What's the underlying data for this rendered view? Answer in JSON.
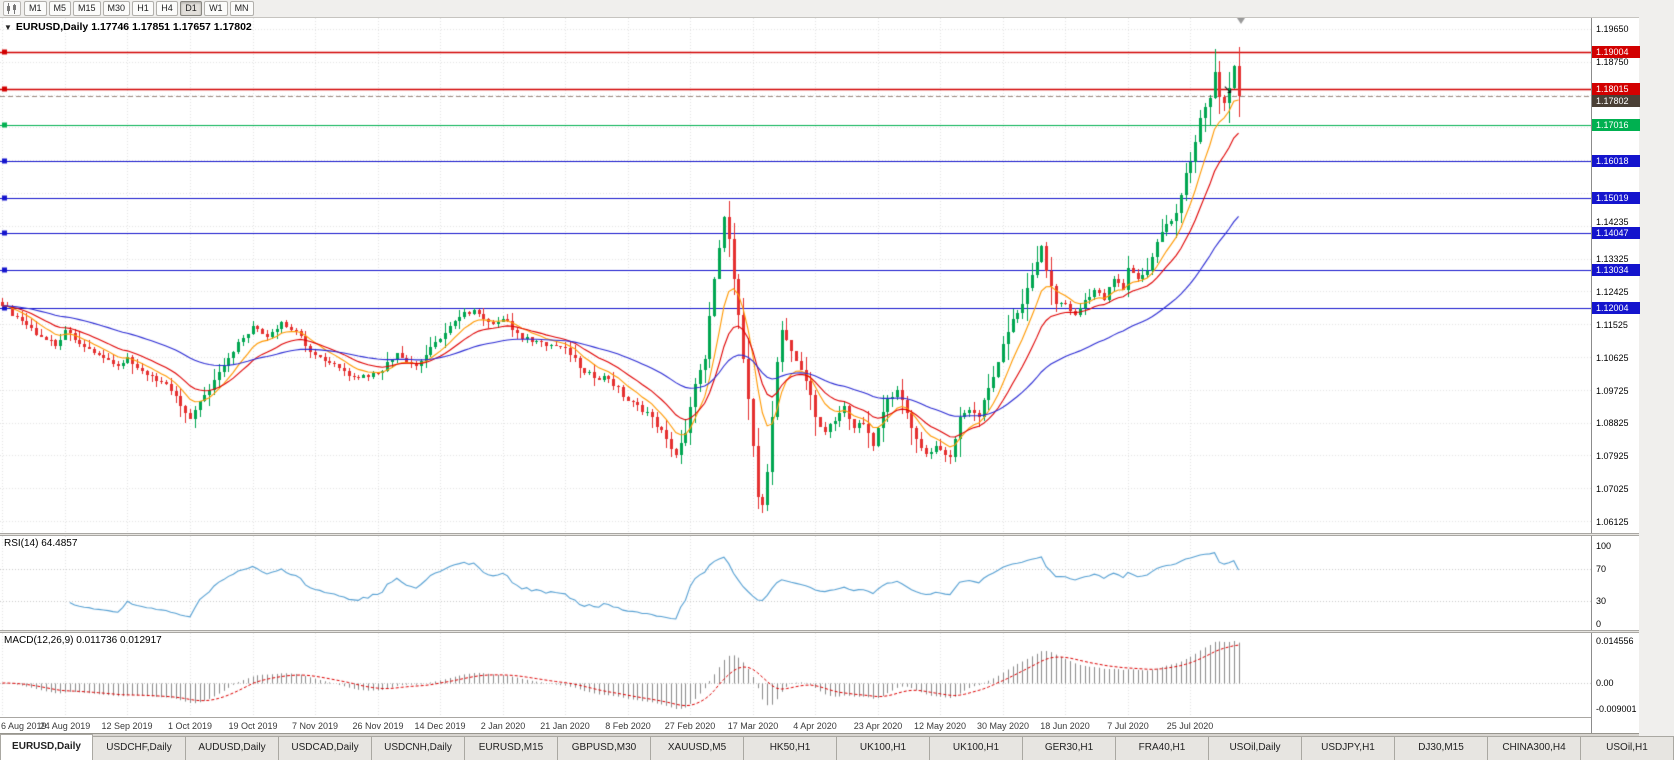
{
  "toolbar": {
    "timeframes": [
      "M1",
      "M5",
      "M15",
      "M30",
      "H1",
      "H4",
      "D1",
      "W1",
      "MN"
    ],
    "active_timeframe": "D1"
  },
  "chart": {
    "symbol": "EURUSD",
    "period": "Daily",
    "title_marker": "▼",
    "title_line": "EURUSD,Daily 1.17746 1.17851 1.17657 1.17802",
    "ohlc": {
      "open": "1.17746",
      "high": "1.17851",
      "low": "1.17657",
      "close": "1.17802"
    },
    "price_scale": {
      "min": 1.0582,
      "max": 1.1995,
      "grid_top": 1.1965,
      "grid_step": 0.009,
      "ticks": [
        "1.19650",
        "1.18750",
        "1.14235",
        "1.13325",
        "1.12425",
        "1.11525",
        "1.10625",
        "1.09725",
        "1.08825",
        "1.07925",
        "1.07025",
        "1.06125"
      ]
    },
    "levels": [
      {
        "label": "1.19004",
        "value": 1.19004,
        "color": "#d20000"
      },
      {
        "label": "1.18015",
        "value": 1.18015,
        "color": "#d20000"
      },
      {
        "label": "1.17016",
        "value": 1.17016,
        "color": "#00b050"
      },
      {
        "label": "1.16018",
        "value": 1.16018,
        "color": "#1414cd"
      },
      {
        "label": "1.15019",
        "value": 1.15019,
        "color": "#1414cd"
      },
      {
        "label": "1.14047",
        "value": 1.14047,
        "color": "#1414cd"
      },
      {
        "label": "1.13034",
        "value": 1.13034,
        "color": "#1414cd"
      },
      {
        "label": "1.12004",
        "value": 1.12004,
        "color": "#1414cd"
      }
    ],
    "bid": {
      "label": "1.17802",
      "value": 1.17802,
      "badge_color": "#4a3f35"
    }
  },
  "rsi": {
    "label": "RSI(14) 64.4857",
    "name": "RSI(14)",
    "value": "64.4857",
    "scale_ticks": [
      "100",
      "70",
      "30",
      "0"
    ],
    "scale_values": [
      100,
      70,
      30,
      0
    ],
    "levels": [
      70,
      30
    ],
    "line_color": "#56a0d3"
  },
  "macd": {
    "label": "MACD(12,26,9) 0.011736 0.012917",
    "name": "MACD(12,26,9)",
    "main_value": "0.011736",
    "signal_value": "0.012917",
    "scale_ticks": [
      "0.014556",
      "0.00",
      "-0.009001"
    ],
    "scale_values": [
      0.014556,
      0,
      -0.009001
    ],
    "histogram_color": "#8c8c8c",
    "signal_color": "#dd0000"
  },
  "date_axis": [
    "6 Aug 2019",
    "24 Aug 2019",
    "12 Sep 2019",
    "1 Oct 2019",
    "19 Oct 2019",
    "7 Nov 2019",
    "26 Nov 2019",
    "14 Dec 2019",
    "2 Jan 2020",
    "21 Jan 2020",
    "8 Feb 2020",
    "27 Feb 2020",
    "17 Mar 2020",
    "4 Apr 2020",
    "23 Apr 2020",
    "12 May 2020",
    "30 May 2020",
    "18 Jun 2020",
    "7 Jul 2020",
    "25 Jul 2020"
  ],
  "tabs": {
    "items": [
      "EURUSD,Daily",
      "USDCHF,Daily",
      "AUDUSD,Daily",
      "USDCAD,Daily",
      "USDCNH,Daily",
      "EURUSD,M15",
      "GBPUSD,M30",
      "XAUUSD,M5",
      "HK50,H1",
      "UK100,H1",
      "UK100,H1",
      "GER30,H1",
      "FRA40,H1",
      "USOil,Daily",
      "USDJPY,H1",
      "DJ30,M15",
      "CHINA300,H4",
      "USOil,H1"
    ],
    "active": "EURUSD,Daily"
  },
  "chart_data": {
    "type": "candlestick",
    "symbol": "EURUSD",
    "timeframe": "Daily",
    "title": "EURUSD,Daily 1.17746 1.17851 1.17657 1.17802",
    "x_labels": [
      "6 Aug 2019",
      "24 Aug 2019",
      "12 Sep 2019",
      "1 Oct 2019",
      "19 Oct 2019",
      "7 Nov 2019",
      "26 Nov 2019",
      "14 Dec 2019",
      "2 Jan 2020",
      "21 Jan 2020",
      "8 Feb 2020",
      "27 Feb 2020",
      "17 Mar 2020",
      "4 Apr 2020",
      "23 Apr 2020",
      "12 May 2020",
      "30 May 2020",
      "18 Jun 2020",
      "7 Jul 2020",
      "25 Jul 2020"
    ],
    "label_every": 13,
    "candle_count": 258,
    "shift_fraction": 0.78,
    "price_range": [
      1.0582,
      1.1995
    ],
    "bull_color": "#00a651",
    "bear_color": "#e53030",
    "close_anchors": [
      [
        0,
        1.1205
      ],
      [
        4,
        1.1165
      ],
      [
        8,
        1.112
      ],
      [
        11,
        1.1095
      ],
      [
        13,
        1.114
      ],
      [
        16,
        1.11
      ],
      [
        20,
        1.107
      ],
      [
        24,
        1.104
      ],
      [
        26,
        1.1065
      ],
      [
        30,
        1.1015
      ],
      [
        34,
        1.099
      ],
      [
        37,
        1.093
      ],
      [
        39,
        1.0895
      ],
      [
        42,
        1.096
      ],
      [
        46,
        1.104
      ],
      [
        49,
        1.1105
      ],
      [
        52,
        1.115
      ],
      [
        55,
        1.112
      ],
      [
        58,
        1.116
      ],
      [
        61,
        1.1135
      ],
      [
        65,
        1.107
      ],
      [
        69,
        1.1045
      ],
      [
        73,
        1.101
      ],
      [
        78,
        1.102
      ],
      [
        82,
        1.1075
      ],
      [
        86,
        1.104
      ],
      [
        91,
        1.1115
      ],
      [
        95,
        1.1175
      ],
      [
        98,
        1.1195
      ],
      [
        101,
        1.116
      ],
      [
        104,
        1.117
      ],
      [
        108,
        1.1115
      ],
      [
        112,
        1.1105
      ],
      [
        117,
        1.109
      ],
      [
        121,
        1.102
      ],
      [
        126,
        1.1005
      ],
      [
        130,
        1.0945
      ],
      [
        134,
        1.0915
      ],
      [
        138,
        1.084
      ],
      [
        140,
        1.0795
      ],
      [
        142,
        1.0855
      ],
      [
        144,
        1.099
      ],
      [
        146,
        1.106
      ],
      [
        148,
        1.128
      ],
      [
        150,
        1.145
      ],
      [
        151,
        1.139
      ],
      [
        152,
        1.128
      ],
      [
        153,
        1.118
      ],
      [
        154,
        1.106
      ],
      [
        155,
        1.095
      ],
      [
        156,
        1.082
      ],
      [
        157,
        1.068
      ],
      [
        158,
        1.066
      ],
      [
        159,
        1.075
      ],
      [
        160,
        1.09
      ],
      [
        161,
        1.105
      ],
      [
        162,
        1.114
      ],
      [
        164,
        1.108
      ],
      [
        166,
        1.103
      ],
      [
        168,
        1.096
      ],
      [
        169,
        1.09
      ],
      [
        171,
        1.086
      ],
      [
        173,
        1.089
      ],
      [
        175,
        1.093
      ],
      [
        177,
        1.087
      ],
      [
        179,
        1.088
      ],
      [
        181,
        1.082
      ],
      [
        182,
        1.087
      ],
      [
        184,
        1.095
      ],
      [
        186,
        1.0975
      ],
      [
        188,
        1.091
      ],
      [
        190,
        1.084
      ],
      [
        192,
        1.08
      ],
      [
        194,
        1.082
      ],
      [
        195,
        1.081
      ],
      [
        197,
        1.079
      ],
      [
        199,
        1.09
      ],
      [
        201,
        1.092
      ],
      [
        203,
        1.09
      ],
      [
        205,
        1.098
      ],
      [
        207,
        1.105
      ],
      [
        208,
        1.11
      ],
      [
        210,
        1.117
      ],
      [
        212,
        1.121
      ],
      [
        214,
        1.129
      ],
      [
        216,
        1.137
      ],
      [
        217,
        1.13
      ],
      [
        219,
        1.121
      ],
      [
        221,
        1.121
      ],
      [
        223,
        1.118
      ],
      [
        225,
        1.122
      ],
      [
        227,
        1.125
      ],
      [
        229,
        1.122
      ],
      [
        231,
        1.128
      ],
      [
        233,
        1.125
      ],
      [
        234,
        1.131
      ],
      [
        236,
        1.128
      ],
      [
        238,
        1.13
      ],
      [
        240,
        1.138
      ],
      [
        242,
        1.143
      ],
      [
        244,
        1.146
      ],
      [
        245,
        1.151
      ],
      [
        246,
        1.157
      ],
      [
        247,
        1.16
      ],
      [
        248,
        1.1655
      ],
      [
        249,
        1.172
      ],
      [
        250,
        1.1752
      ],
      [
        251,
        1.1775
      ],
      [
        252,
        1.1847
      ],
      [
        253,
        1.1778
      ],
      [
        254,
        1.1762
      ],
      [
        255,
        1.1802
      ],
      [
        256,
        1.1864
      ],
      [
        257,
        1.17802
      ]
    ],
    "spike": {
      "index": 252,
      "high": 1.1909
    },
    "last_close": 1.17802,
    "moving_averages": [
      {
        "type": "ema",
        "period": 8,
        "color": "#ff9900",
        "name": "fast-ma"
      },
      {
        "type": "ema",
        "period": 16,
        "color": "#e00000",
        "name": "medium-ma"
      },
      {
        "type": "ema",
        "period": 45,
        "color": "#2b2bd4",
        "name": "slow-ma"
      }
    ],
    "support_resistance_levels": [
      1.19004,
      1.18015,
      1.17016,
      1.16018,
      1.15019,
      1.14047,
      1.13034,
      1.12004
    ],
    "indicators": {
      "rsi": {
        "period": 14,
        "last": 64.4857,
        "scale": [
          0,
          100
        ],
        "levels": [
          30,
          70
        ]
      },
      "macd": {
        "fast": 12,
        "slow": 26,
        "signal": 9,
        "last_main": 0.011736,
        "last_signal": 0.012917,
        "window_max": 0.014556,
        "window_min": -0.009001
      }
    }
  }
}
